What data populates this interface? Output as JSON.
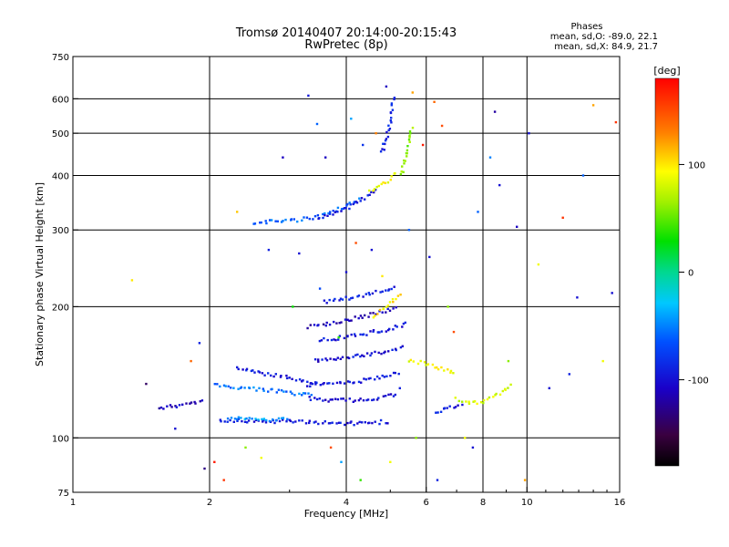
{
  "chart_data": {
    "type": "scatter",
    "title": "Tromsø 20140407 20:14:00-20:15:43",
    "subtitle": "RwPretec (8p)",
    "xlabel": "Frequency [MHz]",
    "ylabel": "Stationary phase Virtual Height [km]",
    "x_scale": "log",
    "y_scale": "log",
    "xlim": [
      1,
      16
    ],
    "ylim": [
      75,
      750
    ],
    "x_ticks": [
      1,
      2,
      4,
      6,
      8,
      10,
      16
    ],
    "x_tick_labels": [
      "1",
      "2",
      "4",
      "6",
      "8",
      "10",
      "16"
    ],
    "y_ticks": [
      75,
      100,
      200,
      300,
      400,
      500,
      600,
      750
    ],
    "y_tick_labels": [
      "75",
      "100",
      "200",
      "300",
      "400",
      "500",
      "600",
      "750"
    ],
    "x_gridlines": [
      2,
      4,
      6,
      8,
      10
    ],
    "y_gridlines": [
      100,
      200,
      300,
      400,
      500,
      600
    ],
    "grid": true,
    "stats_header": "Phases",
    "stats_line1": "mean, sd,O: -89.0, 22.1",
    "stats_line2": "mean, sd,X:  84.9, 21.7",
    "colorbar": {
      "label": "[deg]",
      "range": [
        -180,
        180
      ],
      "ticks": [
        100,
        0,
        -100
      ],
      "tick_labels": [
        "100",
        "0",
        "-100"
      ]
    },
    "traces": [
      {
        "x": [
          1.55,
          1.75,
          1.95
        ],
        "y": [
          117,
          119,
          122
        ],
        "phase": -110
      },
      {
        "x": [
          2.05,
          2.4,
          2.8,
          3.1,
          3.4
        ],
        "y": [
          132,
          130,
          128,
          126,
          125
        ],
        "phase": -55
      },
      {
        "x": [
          2.1,
          2.6,
          3.2,
          3.8,
          4.4,
          5.0
        ],
        "y": [
          110,
          109,
          109,
          108,
          108,
          109
        ],
        "phase": -95
      },
      {
        "x": [
          2.2,
          2.6,
          3.0
        ],
        "y": [
          111,
          110,
          110
        ],
        "phase": -40
      },
      {
        "x": [
          2.3,
          2.7,
          3.1,
          3.5
        ],
        "y": [
          145,
          140,
          136,
          133
        ],
        "phase": -95
      },
      {
        "x": [
          3.3,
          3.8,
          4.3,
          4.8,
          5.2
        ],
        "y": [
          123,
          122,
          122,
          124,
          126
        ],
        "phase": -100
      },
      {
        "x": [
          3.3,
          3.8,
          4.3,
          4.8,
          5.3
        ],
        "y": [
          132,
          133,
          135,
          138,
          142
        ],
        "phase": -95
      },
      {
        "x": [
          3.4,
          3.9,
          4.4,
          4.9,
          5.4
        ],
        "y": [
          150,
          152,
          155,
          158,
          162
        ],
        "phase": -100
      },
      {
        "x": [
          3.5,
          4.0,
          4.5,
          5.0,
          5.5
        ],
        "y": [
          168,
          170,
          174,
          178,
          183
        ],
        "phase": -95
      },
      {
        "x": [
          3.3,
          3.8,
          4.3,
          4.8,
          5.2
        ],
        "y": [
          180,
          184,
          189,
          195,
          200
        ],
        "phase": -110
      },
      {
        "x": [
          3.6,
          4.1,
          4.6,
          5.2
        ],
        "y": [
          205,
          210,
          215,
          222
        ],
        "phase": -90
      },
      {
        "x": [
          2.5,
          3.0,
          3.5,
          3.9,
          4.3
        ],
        "y": [
          312,
          314,
          322,
          336,
          356
        ],
        "phase": -60
      },
      {
        "x": [
          3.5,
          3.9,
          4.3,
          4.7
        ],
        "y": [
          318,
          332,
          350,
          372
        ],
        "phase": -95
      },
      {
        "x": [
          4.5,
          4.9,
          5.2
        ],
        "y": [
          370,
          385,
          410
        ],
        "phase": 90
      },
      {
        "x": [
          5.3,
          5.4,
          5.5,
          5.6
        ],
        "y": [
          400,
          440,
          480,
          520
        ],
        "phase": 60
      },
      {
        "x": [
          4.8,
          5.0,
          5.1
        ],
        "y": [
          450,
          530,
          610
        ],
        "phase": -90
      },
      {
        "x": [
          4.6,
          4.9,
          5.3
        ],
        "y": [
          190,
          200,
          215
        ],
        "phase": 100
      },
      {
        "x": [
          5.5,
          6.0,
          6.5,
          7.0
        ],
        "y": [
          150,
          148,
          144,
          140
        ],
        "phase": 90
      },
      {
        "x": [
          7.0,
          7.4,
          7.8,
          8.2,
          8.7,
          9.3
        ],
        "y": [
          123,
          121,
          120,
          122,
          126,
          133
        ],
        "phase": 80
      },
      {
        "x": [
          6.3,
          6.8,
          7.3
        ],
        "y": [
          115,
          117,
          120
        ],
        "phase": -95
      }
    ],
    "scattered_points": [
      {
        "x": 1.45,
        "y": 133,
        "phase": -140
      },
      {
        "x": 1.68,
        "y": 105,
        "phase": -100
      },
      {
        "x": 1.82,
        "y": 150,
        "phase": 140
      },
      {
        "x": 1.9,
        "y": 165,
        "phase": -90
      },
      {
        "x": 1.95,
        "y": 85,
        "phase": -130
      },
      {
        "x": 2.05,
        "y": 88,
        "phase": 170
      },
      {
        "x": 2.15,
        "y": 80,
        "phase": 160
      },
      {
        "x": 2.3,
        "y": 330,
        "phase": 110
      },
      {
        "x": 2.4,
        "y": 95,
        "phase": 60
      },
      {
        "x": 2.6,
        "y": 90,
        "phase": 90
      },
      {
        "x": 2.7,
        "y": 270,
        "phase": -90
      },
      {
        "x": 2.9,
        "y": 440,
        "phase": -110
      },
      {
        "x": 3.05,
        "y": 200,
        "phase": 30
      },
      {
        "x": 3.15,
        "y": 265,
        "phase": -100
      },
      {
        "x": 3.3,
        "y": 610,
        "phase": -95
      },
      {
        "x": 3.45,
        "y": 525,
        "phase": -60
      },
      {
        "x": 3.5,
        "y": 220,
        "phase": -70
      },
      {
        "x": 3.6,
        "y": 440,
        "phase": -110
      },
      {
        "x": 3.7,
        "y": 95,
        "phase": 150
      },
      {
        "x": 3.85,
        "y": 170,
        "phase": 40
      },
      {
        "x": 3.9,
        "y": 88,
        "phase": -40
      },
      {
        "x": 4.0,
        "y": 240,
        "phase": -100
      },
      {
        "x": 4.1,
        "y": 540,
        "phase": -40
      },
      {
        "x": 4.2,
        "y": 280,
        "phase": 150
      },
      {
        "x": 4.3,
        "y": 80,
        "phase": 40
      },
      {
        "x": 4.35,
        "y": 470,
        "phase": -80
      },
      {
        "x": 4.55,
        "y": 270,
        "phase": -100
      },
      {
        "x": 4.65,
        "y": 500,
        "phase": 130
      },
      {
        "x": 4.8,
        "y": 235,
        "phase": 100
      },
      {
        "x": 4.9,
        "y": 640,
        "phase": -110
      },
      {
        "x": 5.0,
        "y": 88,
        "phase": 90
      },
      {
        "x": 5.25,
        "y": 130,
        "phase": -90
      },
      {
        "x": 5.5,
        "y": 300,
        "phase": -60
      },
      {
        "x": 5.6,
        "y": 620,
        "phase": 120
      },
      {
        "x": 5.7,
        "y": 100,
        "phase": 60
      },
      {
        "x": 5.9,
        "y": 470,
        "phase": 170
      },
      {
        "x": 6.1,
        "y": 260,
        "phase": -100
      },
      {
        "x": 6.25,
        "y": 590,
        "phase": 140
      },
      {
        "x": 6.35,
        "y": 80,
        "phase": -90
      },
      {
        "x": 6.5,
        "y": 520,
        "phase": 150
      },
      {
        "x": 6.7,
        "y": 200,
        "phase": 60
      },
      {
        "x": 6.9,
        "y": 175,
        "phase": 150
      },
      {
        "x": 7.3,
        "y": 100,
        "phase": 90
      },
      {
        "x": 7.6,
        "y": 95,
        "phase": -100
      },
      {
        "x": 7.8,
        "y": 330,
        "phase": -60
      },
      {
        "x": 8.3,
        "y": 440,
        "phase": -50
      },
      {
        "x": 8.5,
        "y": 560,
        "phase": -120
      },
      {
        "x": 8.7,
        "y": 380,
        "phase": -100
      },
      {
        "x": 9.1,
        "y": 150,
        "phase": 60
      },
      {
        "x": 9.5,
        "y": 305,
        "phase": -110
      },
      {
        "x": 9.9,
        "y": 80,
        "phase": 120
      },
      {
        "x": 10.1,
        "y": 500,
        "phase": -100
      },
      {
        "x": 10.6,
        "y": 250,
        "phase": 90
      },
      {
        "x": 11.2,
        "y": 130,
        "phase": -100
      },
      {
        "x": 12.0,
        "y": 320,
        "phase": 160
      },
      {
        "x": 12.4,
        "y": 140,
        "phase": -90
      },
      {
        "x": 12.9,
        "y": 210,
        "phase": -100
      },
      {
        "x": 13.3,
        "y": 400,
        "phase": -60
      },
      {
        "x": 14.0,
        "y": 580,
        "phase": 120
      },
      {
        "x": 14.7,
        "y": 150,
        "phase": 90
      },
      {
        "x": 15.4,
        "y": 215,
        "phase": -100
      },
      {
        "x": 15.7,
        "y": 530,
        "phase": 160
      },
      {
        "x": 1.35,
        "y": 230,
        "phase": 100
      }
    ]
  }
}
